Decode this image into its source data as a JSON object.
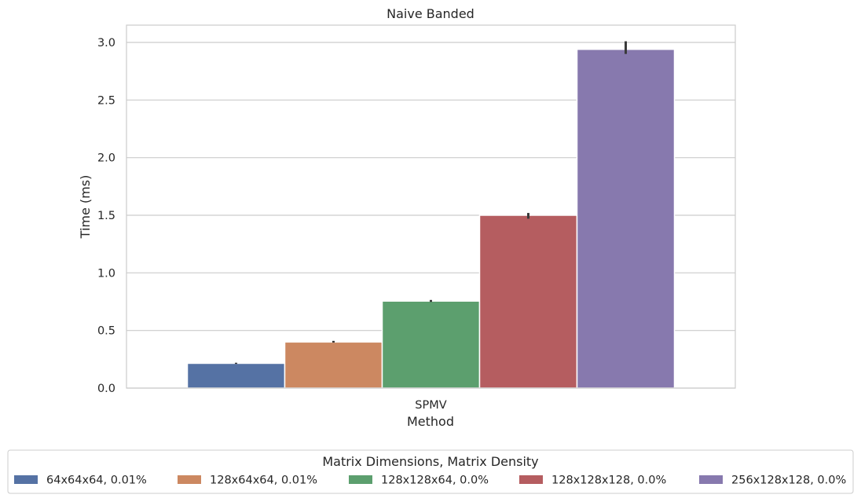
{
  "chart_data": {
    "type": "bar",
    "title": "Naive Banded",
    "xlabel": "Method",
    "ylabel": "Time (ms)",
    "categories": [
      "SPMV"
    ],
    "ylim": [
      0,
      3.15
    ],
    "yticks": [
      0.0,
      0.5,
      1.0,
      1.5,
      2.0,
      2.5,
      3.0
    ],
    "ytick_labels": [
      "0.0",
      "0.5",
      "1.0",
      "1.5",
      "2.0",
      "2.5",
      "3.0"
    ],
    "grid": true,
    "legend": {
      "title": "Matrix Dimensions, Matrix Density",
      "placement": "bottom-center"
    },
    "series": [
      {
        "name": "64x64x64, 0.01%",
        "values": [
          0.215
        ],
        "err": [
          [
            0.21,
            0.22
          ]
        ],
        "color": "#5572a4"
      },
      {
        "name": "128x64x64, 0.01%",
        "values": [
          0.4
        ],
        "err": [
          [
            0.395,
            0.41
          ]
        ],
        "color": "#cc8861"
      },
      {
        "name": "128x128x64, 0.0%",
        "values": [
          0.755
        ],
        "err": [
          [
            0.748,
            0.765
          ]
        ],
        "color": "#5c9f6e"
      },
      {
        "name": "128x128x128, 0.0%",
        "values": [
          1.5
        ],
        "err": [
          [
            1.47,
            1.52
          ]
        ],
        "color": "#b55d60"
      },
      {
        "name": "256x128x128, 0.0%",
        "values": [
          2.94
        ],
        "err": [
          [
            2.9,
            3.01
          ]
        ],
        "color": "#8779ae"
      }
    ]
  }
}
